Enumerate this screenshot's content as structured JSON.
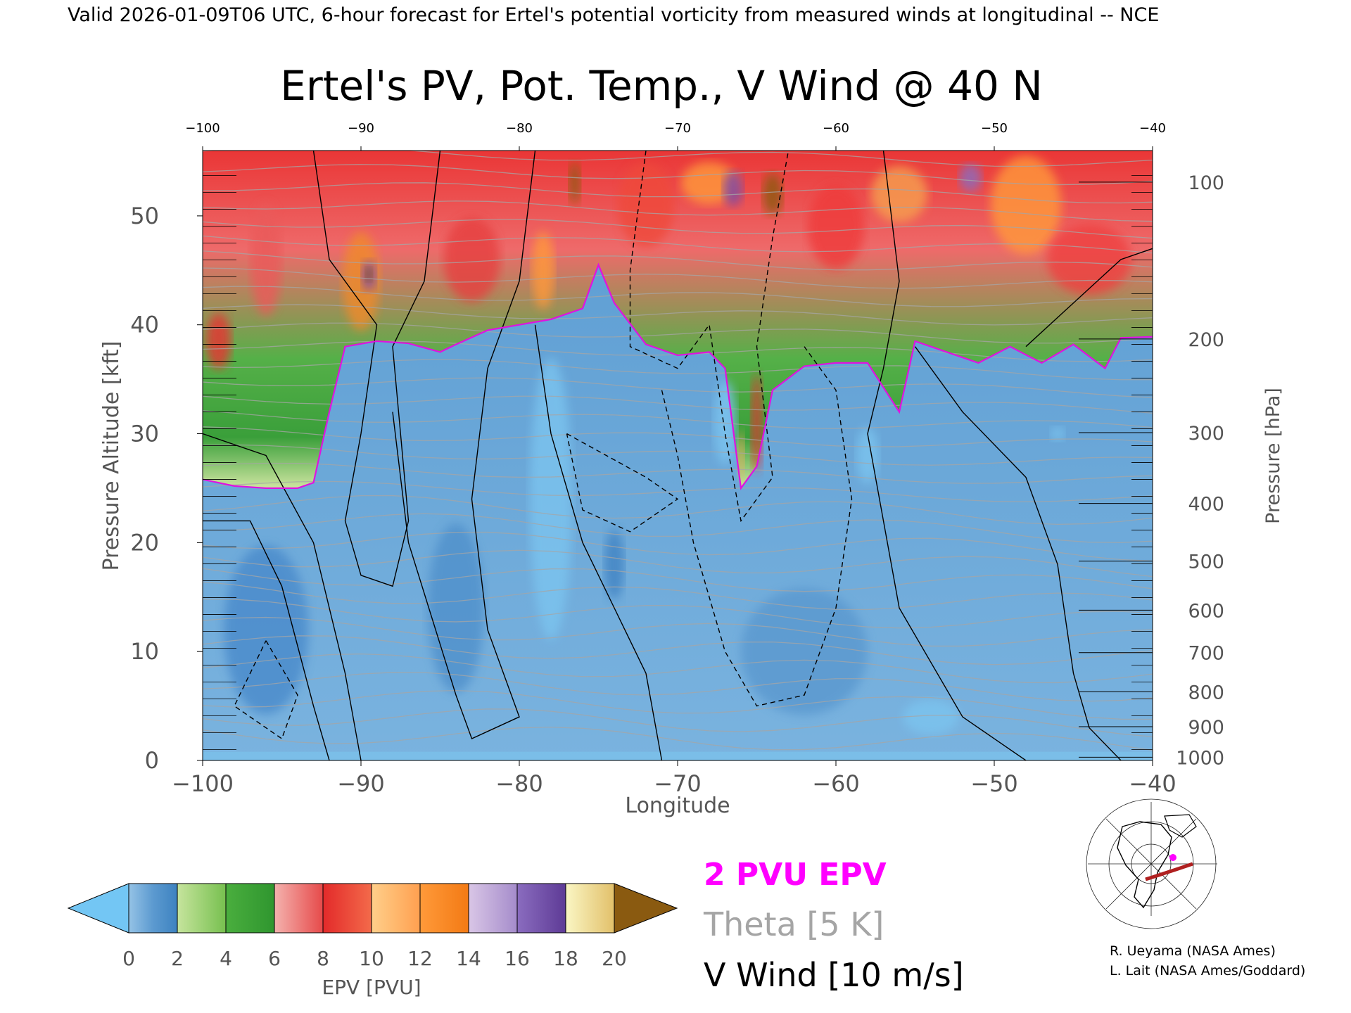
{
  "header": {
    "valid_line": "Valid 2026-01-09T06 UTC, 6-hour forecast for Ertel's potential vorticity from measured winds at longitudinal -- NCE"
  },
  "chart_data": {
    "type": "heatmap",
    "title": "Ertel's PV, Pot. Temp., V Wind @ 40 N",
    "xlabel": "Longitude",
    "ylabel_left": "Pressure Altitude [kft]",
    "ylabel_right": "Pressure [hPa]",
    "xlim": [
      -100,
      -40
    ],
    "ylim": [
      0,
      56
    ],
    "x_ticks": [
      -100,
      -90,
      -80,
      -70,
      -60,
      -50,
      -40
    ],
    "y_ticks": [
      0,
      10,
      20,
      30,
      40,
      50
    ],
    "pressure_ticks": [
      {
        "hPa": 100,
        "kft": 53.1
      },
      {
        "hPa": 200,
        "kft": 38.7
      },
      {
        "hPa": 300,
        "kft": 30.1
      },
      {
        "hPa": 400,
        "kft": 23.6
      },
      {
        "hPa": 500,
        "kft": 18.3
      },
      {
        "hPa": 600,
        "kft": 13.8
      },
      {
        "hPa": 700,
        "kft": 9.9
      },
      {
        "hPa": 800,
        "kft": 6.3
      },
      {
        "hPa": 900,
        "kft": 3.1
      },
      {
        "hPa": 1000,
        "kft": 0.3
      }
    ],
    "epv_tropopause_kft": [
      [
        -100,
        25.8
      ],
      [
        -98,
        25.2
      ],
      [
        -96,
        25.0
      ],
      [
        -94,
        25.0
      ],
      [
        -93,
        25.5
      ],
      [
        -92,
        32
      ],
      [
        -91,
        38
      ],
      [
        -89,
        38.5
      ],
      [
        -87,
        38.3
      ],
      [
        -85,
        37.5
      ],
      [
        -84,
        38.2
      ],
      [
        -82,
        39.5
      ],
      [
        -80,
        40.0
      ],
      [
        -78,
        40.5
      ],
      [
        -76,
        41.5
      ],
      [
        -75,
        45.5
      ],
      [
        -74,
        42
      ],
      [
        -72,
        38.2
      ],
      [
        -70,
        37.2
      ],
      [
        -68,
        37.5
      ],
      [
        -67,
        36
      ],
      [
        -66,
        25
      ],
      [
        -65,
        27
      ],
      [
        -64,
        34
      ],
      [
        -62,
        36.2
      ],
      [
        -60,
        36.5
      ],
      [
        -58,
        36.5
      ],
      [
        -56,
        32
      ],
      [
        -55,
        38.5
      ],
      [
        -53,
        37.5
      ],
      [
        -51,
        36.5
      ],
      [
        -49,
        38.0
      ],
      [
        -47,
        36.5
      ],
      [
        -45,
        38.2
      ],
      [
        -43,
        36
      ],
      [
        -42,
        38.8
      ],
      [
        -40,
        38.9
      ]
    ],
    "epv_colorbar": {
      "label": "EPV [PVU]",
      "ticks": [
        0,
        2,
        4,
        6,
        8,
        10,
        12,
        14,
        16,
        18,
        20
      ],
      "under_color": "#73c6f4",
      "over_color": "#8a5a10",
      "colors": [
        "#8ab8dc",
        "#cfe79c",
        "#3aa33a",
        "#f07f7f",
        "#e03030",
        "#ffae60",
        "#ff8c20",
        "#b7a8d6",
        "#6b44a0",
        "#f3ec9a"
      ]
    },
    "legend": [
      {
        "label": "2 PVU EPV",
        "color": "#ff00ff"
      },
      {
        "label": "Theta [5 K]",
        "color": "#a5a5a5"
      },
      {
        "label": "V Wind [10 m/s]",
        "color": "#000000"
      }
    ],
    "credits": [
      "R. Ueyama (NASA Ames)",
      "L. Lait (NASA Ames/Goddard)"
    ],
    "grid": false
  }
}
